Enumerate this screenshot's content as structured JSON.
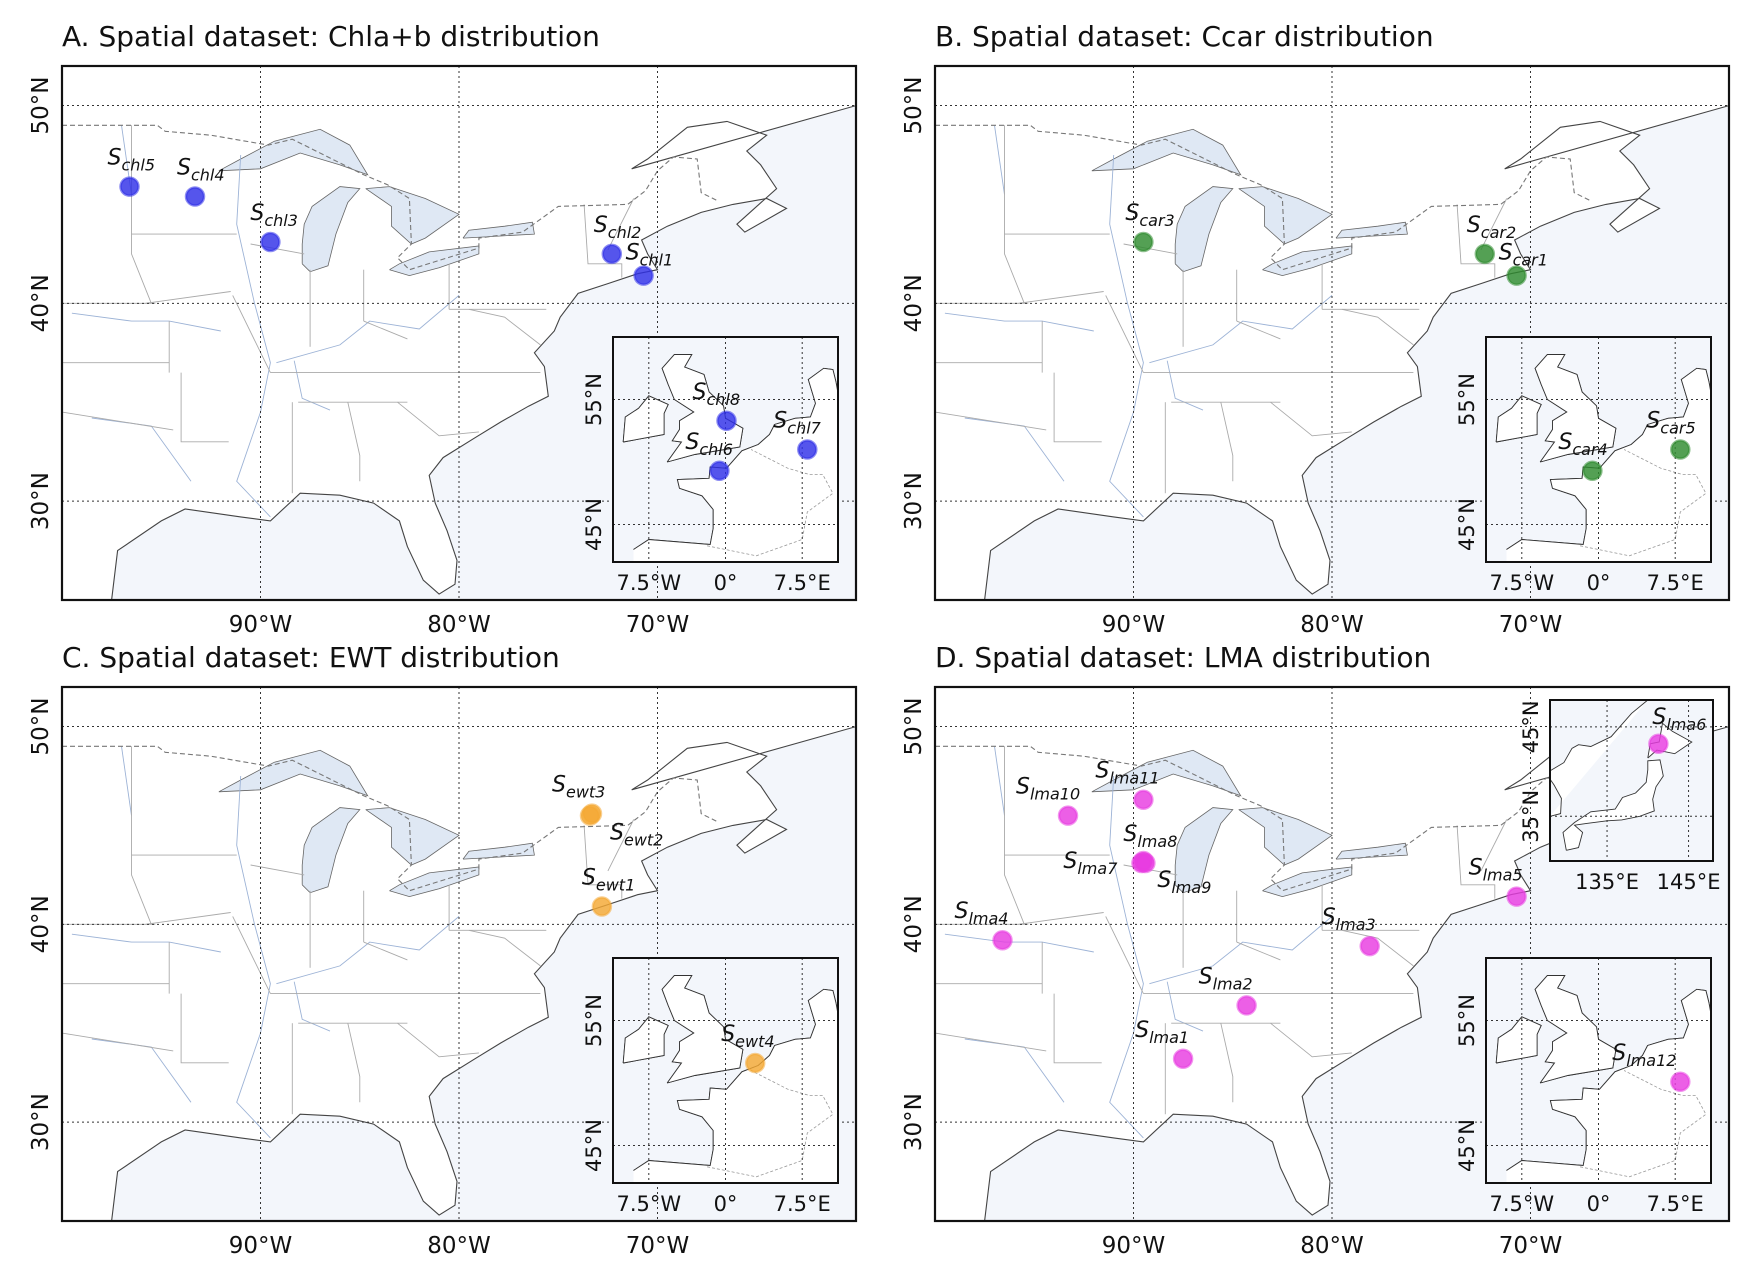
{
  "figure": {
    "panels": [
      {
        "id": "A",
        "title": "A. Spatial dataset: Chla+b distribution",
        "color": "#2f2fe8",
        "x_ticks": [
          "90°W",
          "80°W",
          "70°W"
        ],
        "y_ticks": [
          "50°N",
          "40°N",
          "30°N"
        ],
        "sites": [
          {
            "base": "S",
            "sub": "chl5",
            "lon": -96.6,
            "lat": 45.9
          },
          {
            "base": "S",
            "sub": "chl4",
            "lon": -93.3,
            "lat": 45.4
          },
          {
            "base": "S",
            "sub": "chl3",
            "lon": -89.5,
            "lat": 43.1
          },
          {
            "base": "S",
            "sub": "chl2",
            "lon": -72.3,
            "lat": 42.5
          },
          {
            "base": "S",
            "sub": "chl1",
            "lon": -70.7,
            "lat": 41.4
          }
        ],
        "insets": [
          {
            "x_ticks": [
              "7.5°W",
              "0°",
              "7.5°E"
            ],
            "y_ticks": [
              "55°N",
              "45°N"
            ],
            "sites": [
              {
                "base": "S",
                "sub": "chl8",
                "lon": 0.1,
                "lat": 53.3
              },
              {
                "base": "S",
                "sub": "chl7",
                "lon": 8.0,
                "lat": 51.0
              },
              {
                "base": "S",
                "sub": "chl6",
                "lon": -0.6,
                "lat": 49.3
              }
            ]
          }
        ]
      },
      {
        "id": "B",
        "title": "B. Spatial dataset: Ccar distribution",
        "color": "#2e8b2e",
        "x_ticks": [
          "90°W",
          "80°W",
          "70°W"
        ],
        "y_ticks": [
          "50°N",
          "40°N",
          "30°N"
        ],
        "sites": [
          {
            "base": "S",
            "sub": "car3",
            "lon": -89.5,
            "lat": 43.1
          },
          {
            "base": "S",
            "sub": "car2",
            "lon": -72.3,
            "lat": 42.5
          },
          {
            "base": "S",
            "sub": "car1",
            "lon": -70.7,
            "lat": 41.4
          }
        ],
        "insets": [
          {
            "x_ticks": [
              "7.5°W",
              "0°",
              "7.5°E"
            ],
            "y_ticks": [
              "55°N",
              "45°N"
            ],
            "sites": [
              {
                "base": "S",
                "sub": "car5",
                "lon": 8.0,
                "lat": 51.0
              },
              {
                "base": "S",
                "sub": "car4",
                "lon": -0.6,
                "lat": 49.3
              }
            ]
          }
        ]
      },
      {
        "id": "C",
        "title": "C. Spatial dataset: EWT distribution",
        "color": "#f4a833",
        "x_ticks": [
          "90°W",
          "80°W",
          "70°W"
        ],
        "y_ticks": [
          "50°N",
          "40°N",
          "30°N"
        ],
        "sites": [
          {
            "base": "S",
            "sub": "ewt3",
            "lon": -73.3,
            "lat": 45.6
          },
          {
            "base": "S",
            "sub": "ewt2",
            "lon": -73.4,
            "lat": 45.5
          },
          {
            "base": "S",
            "sub": "ewt1",
            "lon": -72.8,
            "lat": 40.9
          }
        ],
        "insets": [
          {
            "x_ticks": [
              "7.5°W",
              "0°",
              "7.5°E"
            ],
            "y_ticks": [
              "55°N",
              "45°N"
            ],
            "sites": [
              {
                "base": "S",
                "sub": "ewt4",
                "lon": 2.9,
                "lat": 51.6
              }
            ]
          }
        ]
      },
      {
        "id": "D",
        "title": "D. Spatial dataset: LMA distribution",
        "color": "#e83ce0",
        "x_ticks": [
          "90°W",
          "80°W",
          "70°W"
        ],
        "y_ticks": [
          "50°N",
          "40°N",
          "30°N"
        ],
        "sites": [
          {
            "base": "S",
            "sub": "lma11",
            "lon": -89.5,
            "lat": 46.3
          },
          {
            "base": "S",
            "sub": "lma10",
            "lon": -93.3,
            "lat": 45.5
          },
          {
            "base": "S",
            "sub": "lma8",
            "lon": -89.5,
            "lat": 43.2
          },
          {
            "base": "S",
            "sub": "lma7",
            "lon": -89.6,
            "lat": 43.1
          },
          {
            "base": "S",
            "sub": "lma9",
            "lon": -89.4,
            "lat": 43.1
          },
          {
            "base": "S",
            "sub": "lma5",
            "lon": -70.7,
            "lat": 41.4
          },
          {
            "base": "S",
            "sub": "lma4",
            "lon": -96.6,
            "lat": 39.2
          },
          {
            "base": "S",
            "sub": "lma3",
            "lon": -78.1,
            "lat": 38.9
          },
          {
            "base": "S",
            "sub": "lma2",
            "lon": -84.3,
            "lat": 35.9
          },
          {
            "base": "S",
            "sub": "lma1",
            "lon": -87.5,
            "lat": 33.2
          }
        ],
        "insets": [
          {
            "x_ticks": [
              "135°E",
              "145°E"
            ],
            "y_ticks": [
              "45°N",
              "35°N"
            ],
            "sites": [
              {
                "base": "S",
                "sub": "lma6",
                "lon": 141.3,
                "lat": 43.1
              }
            ]
          },
          {
            "x_ticks": [
              "7.5°W",
              "0°",
              "7.5°E"
            ],
            "y_ticks": [
              "55°N",
              "45°N"
            ],
            "sites": [
              {
                "base": "S",
                "sub": "lma12",
                "lon": 8.0,
                "lat": 50.1
              }
            ]
          }
        ]
      }
    ]
  }
}
